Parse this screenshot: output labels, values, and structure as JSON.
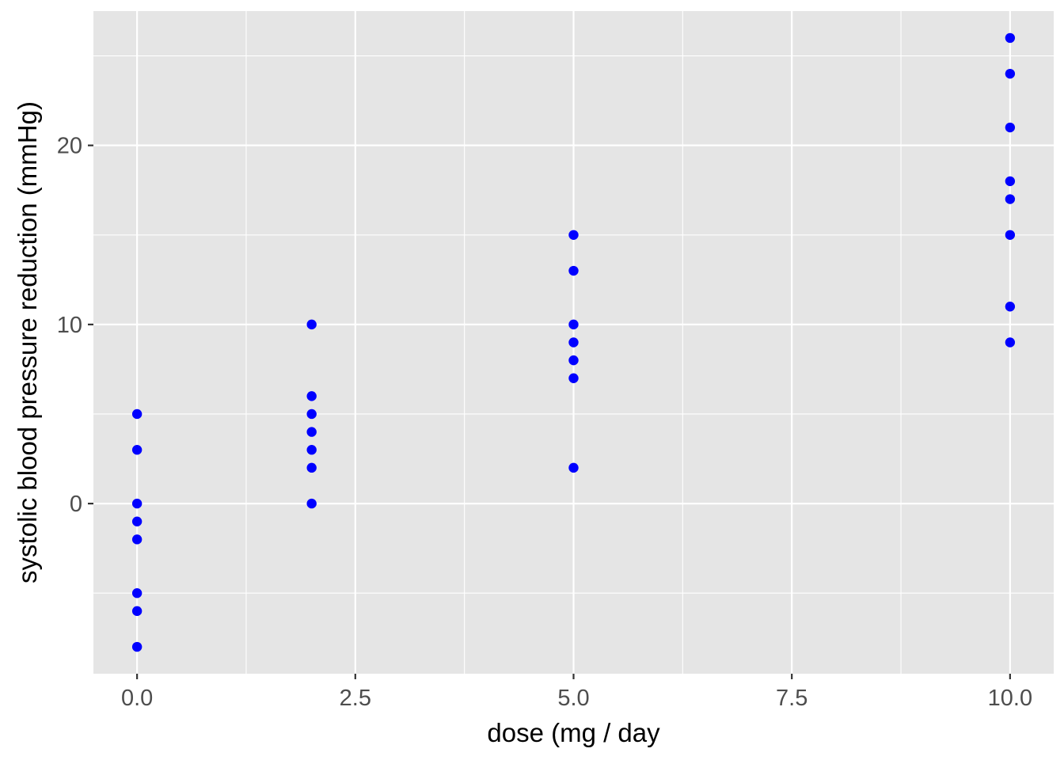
{
  "chart_data": {
    "type": "scatter",
    "title": "",
    "xlabel": "dose (mg / day",
    "ylabel": "systolic blood pressure reduction (mmHg)",
    "xlim": [
      -0.5,
      10.5
    ],
    "ylim": [
      -9.5,
      27.5
    ],
    "x_ticks": [
      0,
      2.5,
      5,
      7.5,
      10
    ],
    "x_tick_labels": [
      "0.0",
      "2.5",
      "5.0",
      "7.5",
      "10.0"
    ],
    "x_minor_ticks": [
      1.25,
      3.75,
      6.25,
      8.75
    ],
    "y_ticks": [
      0,
      10,
      20
    ],
    "y_tick_labels": [
      "0",
      "10",
      "20"
    ],
    "y_minor_ticks": [
      -5,
      5,
      15,
      25
    ],
    "grid": true,
    "colors": {
      "panel": "#E5E5E5",
      "grid": "#FFFFFF",
      "point": "#0000FF"
    },
    "series": [
      {
        "points": [
          {
            "x": 0,
            "y": 5
          },
          {
            "x": 0,
            "y": 3
          },
          {
            "x": 0,
            "y": 0
          },
          {
            "x": 0,
            "y": -1
          },
          {
            "x": 0,
            "y": -2
          },
          {
            "x": 0,
            "y": -5
          },
          {
            "x": 0,
            "y": -6
          },
          {
            "x": 0,
            "y": -8
          },
          {
            "x": 2,
            "y": 10
          },
          {
            "x": 2,
            "y": 6
          },
          {
            "x": 2,
            "y": 5
          },
          {
            "x": 2,
            "y": 4
          },
          {
            "x": 2,
            "y": 3
          },
          {
            "x": 2,
            "y": 2
          },
          {
            "x": 2,
            "y": 0
          },
          {
            "x": 5,
            "y": 15
          },
          {
            "x": 5,
            "y": 13
          },
          {
            "x": 5,
            "y": 10
          },
          {
            "x": 5,
            "y": 9
          },
          {
            "x": 5,
            "y": 8
          },
          {
            "x": 5,
            "y": 7
          },
          {
            "x": 5,
            "y": 2
          },
          {
            "x": 10,
            "y": 26
          },
          {
            "x": 10,
            "y": 24
          },
          {
            "x": 10,
            "y": 21
          },
          {
            "x": 10,
            "y": 18
          },
          {
            "x": 10,
            "y": 17
          },
          {
            "x": 10,
            "y": 15
          },
          {
            "x": 10,
            "y": 11
          },
          {
            "x": 10,
            "y": 9
          }
        ]
      }
    ]
  }
}
